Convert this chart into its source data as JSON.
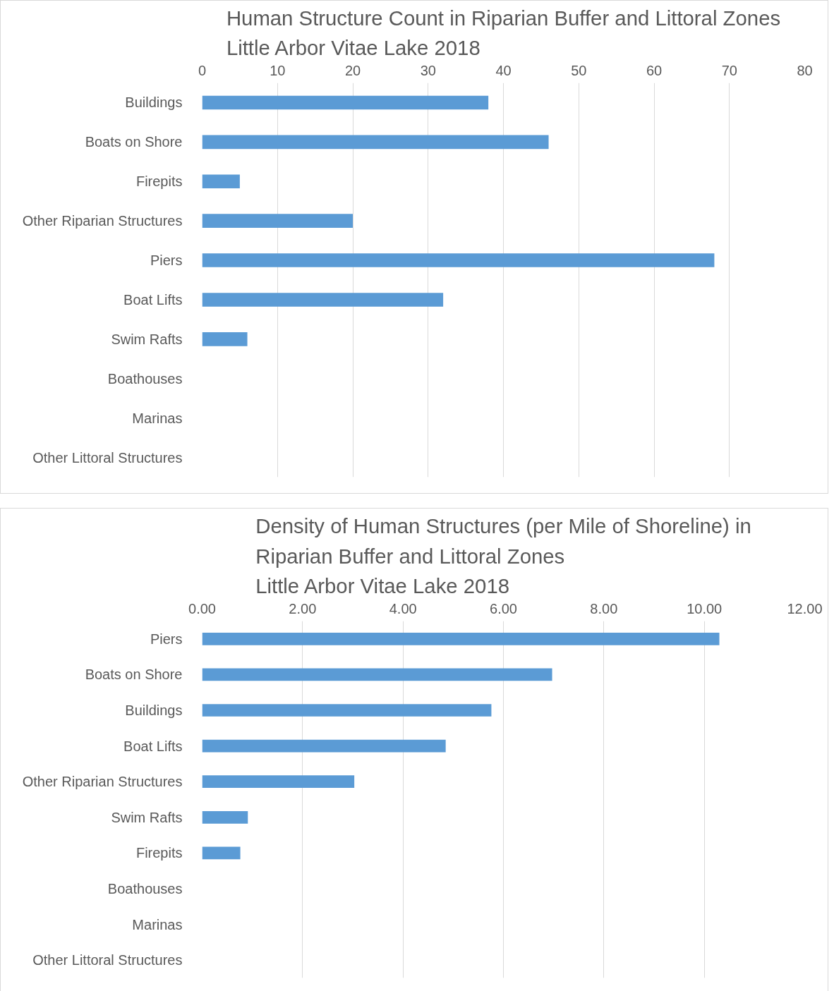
{
  "chart_data": [
    {
      "type": "bar",
      "orientation": "horizontal",
      "title": "Human Structure Count in Riparian Buffer and Littoral Zones\nLittle Arbor Vitae Lake 2018",
      "categories": [
        "Buildings",
        "Boats on Shore",
        "Firepits",
        "Other Riparian Structures",
        "Piers",
        "Boat Lifts",
        "Swim Rafts",
        "Boathouses",
        "Marinas",
        "Other Littoral Structures"
      ],
      "values": [
        38,
        46,
        5,
        20,
        68,
        32,
        6,
        0,
        0,
        0
      ],
      "color": "#5b9bd5",
      "xlim": [
        0,
        80
      ],
      "xticks": [
        0,
        10,
        20,
        30,
        40,
        50,
        60,
        70,
        80
      ],
      "grid": "x"
    },
    {
      "type": "bar",
      "orientation": "horizontal",
      "title": "Density of Human Structures (per Mile of Shoreline) in\nRiparian Buffer and Littoral Zones\nLittle Arbor Vitae Lake 2018",
      "categories": [
        "Piers",
        "Boats on Shore",
        "Buildings",
        "Boat Lifts",
        "Other Riparian Structures",
        "Swim Rafts",
        "Firepits",
        "Boathouses",
        "Marinas",
        "Other Littoral Structures"
      ],
      "values": [
        10.3,
        6.97,
        5.76,
        4.85,
        3.03,
        0.91,
        0.76,
        0,
        0,
        0
      ],
      "color": "#5b9bd5",
      "xlim": [
        0,
        12
      ],
      "xticks": [
        {
          "value": 0,
          "label": "0.00"
        },
        {
          "value": 2,
          "label": "2.00"
        },
        {
          "value": 4,
          "label": "4.00"
        },
        {
          "value": 6,
          "label": "6.00"
        },
        {
          "value": 8,
          "label": "8.00"
        },
        {
          "value": 10,
          "label": "10.00"
        },
        {
          "value": 12,
          "label": "12.00"
        }
      ],
      "grid": "x"
    }
  ]
}
